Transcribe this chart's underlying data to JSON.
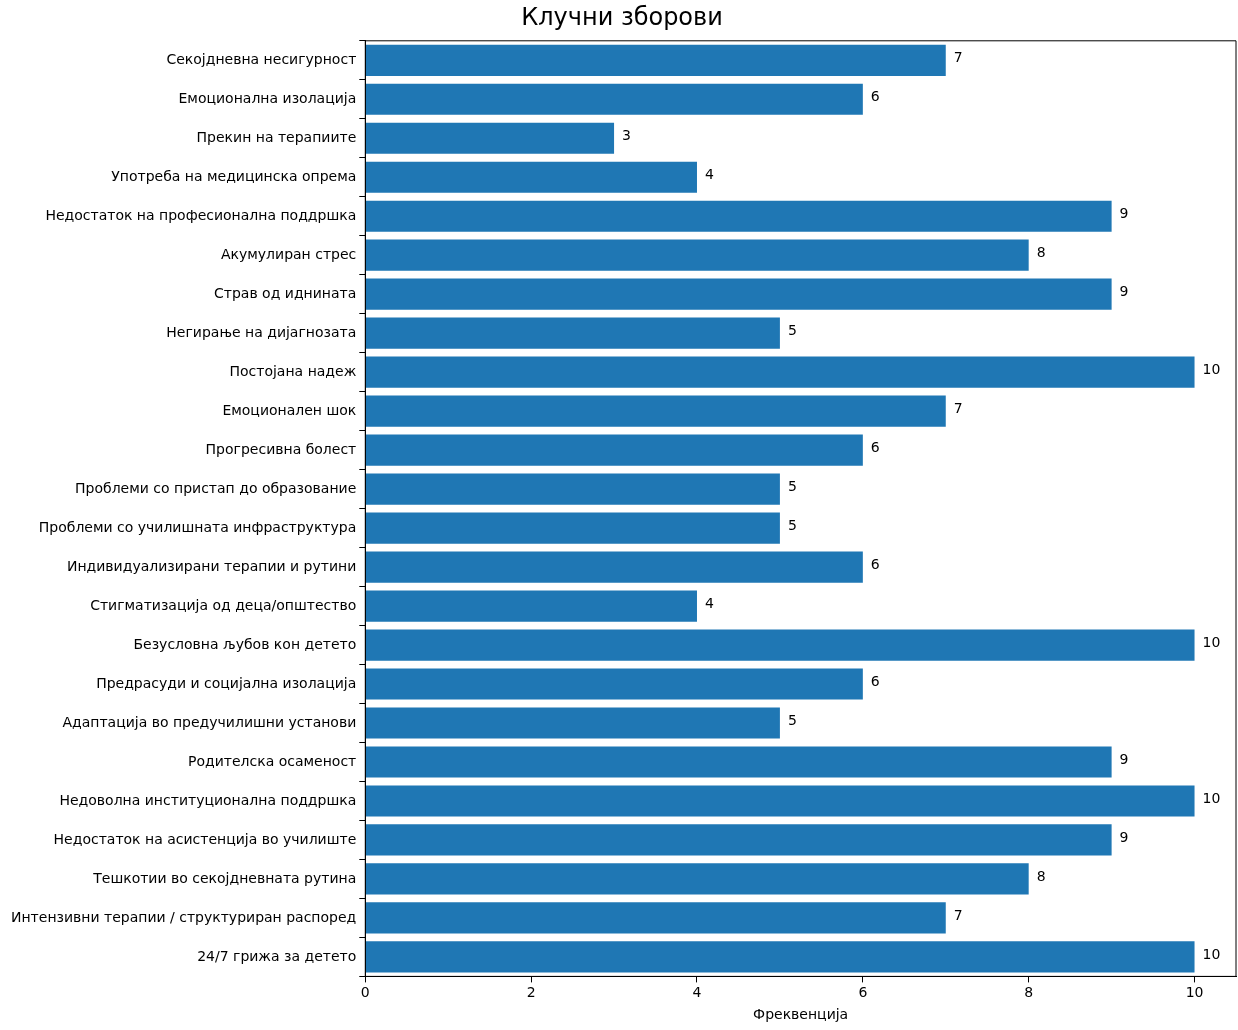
{
  "chart_data": {
    "type": "bar",
    "orientation": "horizontal",
    "title": "Клучни зборови",
    "xlabel": "Фреквенција",
    "categories": [
      "Секојдневна несигурност",
      "Емоционална изолација",
      "Прекин на терапиите",
      "Употреба на медицинска опрема",
      "Недостаток на професионална поддршка",
      "Акумулиран стрес",
      "Страв од иднината",
      "Негирање на дијагнозата",
      "Постојана надеж",
      "Емоционален шок",
      "Прогресивна болест",
      "Проблеми со пристап до образование",
      "Проблеми со училишната инфраструктура",
      "Индивидуализирани терапии и рутини",
      "Стигматизација од деца/општество",
      "Безусловна љубов кон детето",
      "Предрасуди и социјална изолација",
      "Адаптација во предучилишни установи",
      "Родителска осаменост",
      "Недоволна институционална поддршка",
      "Недостаток на асистенција во училиште",
      "Тешкотии во секојдневната рутина",
      "Интензивни терапии / структуриран распоред",
      "24/7 грижа за детето"
    ],
    "values": [
      7,
      6,
      3,
      4,
      9,
      8,
      9,
      5,
      10,
      7,
      6,
      5,
      5,
      6,
      4,
      10,
      6,
      5,
      9,
      10,
      9,
      8,
      7,
      10
    ],
    "color": "#1f77b4",
    "xlim": [
      0,
      10.5
    ],
    "xticks": [
      0,
      2,
      4,
      6,
      8,
      10
    ],
    "data_labels": true,
    "grid": false,
    "legend": false
  }
}
